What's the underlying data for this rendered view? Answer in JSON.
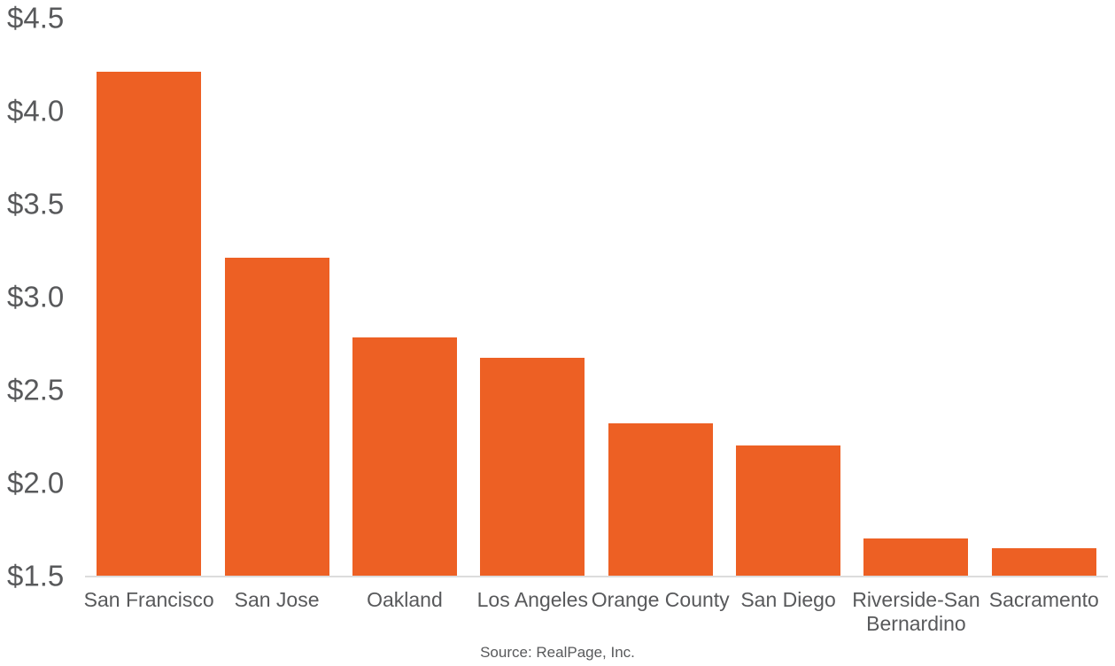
{
  "chart_data": {
    "type": "bar",
    "title": "",
    "xlabel": "",
    "ylabel": "",
    "categories": [
      "San Francisco",
      "San Jose",
      "Oakland",
      "Los Angeles",
      "Orange County",
      "San Diego",
      "Riverside-San Bernardino",
      "Sacramento"
    ],
    "values": [
      4.21,
      3.21,
      2.78,
      2.67,
      2.32,
      2.2,
      1.7,
      1.65
    ],
    "ylim": [
      1.5,
      4.5
    ],
    "yticks": [
      {
        "label": "$4.5",
        "value": 4.5
      },
      {
        "label": "$4.0",
        "value": 4.0
      },
      {
        "label": "$3.5",
        "value": 3.5
      },
      {
        "label": "$3.0",
        "value": 3.0
      },
      {
        "label": "$2.5",
        "value": 2.5
      },
      {
        "label": "$2.0",
        "value": 2.0
      },
      {
        "label": "$1.5",
        "value": 1.5
      }
    ],
    "grid": false,
    "legend": false,
    "bar_color": "#ED6024",
    "baseline_color": "#DCDCDC",
    "text_color": "#58595B"
  },
  "source_note": "Source: RealPage, Inc."
}
